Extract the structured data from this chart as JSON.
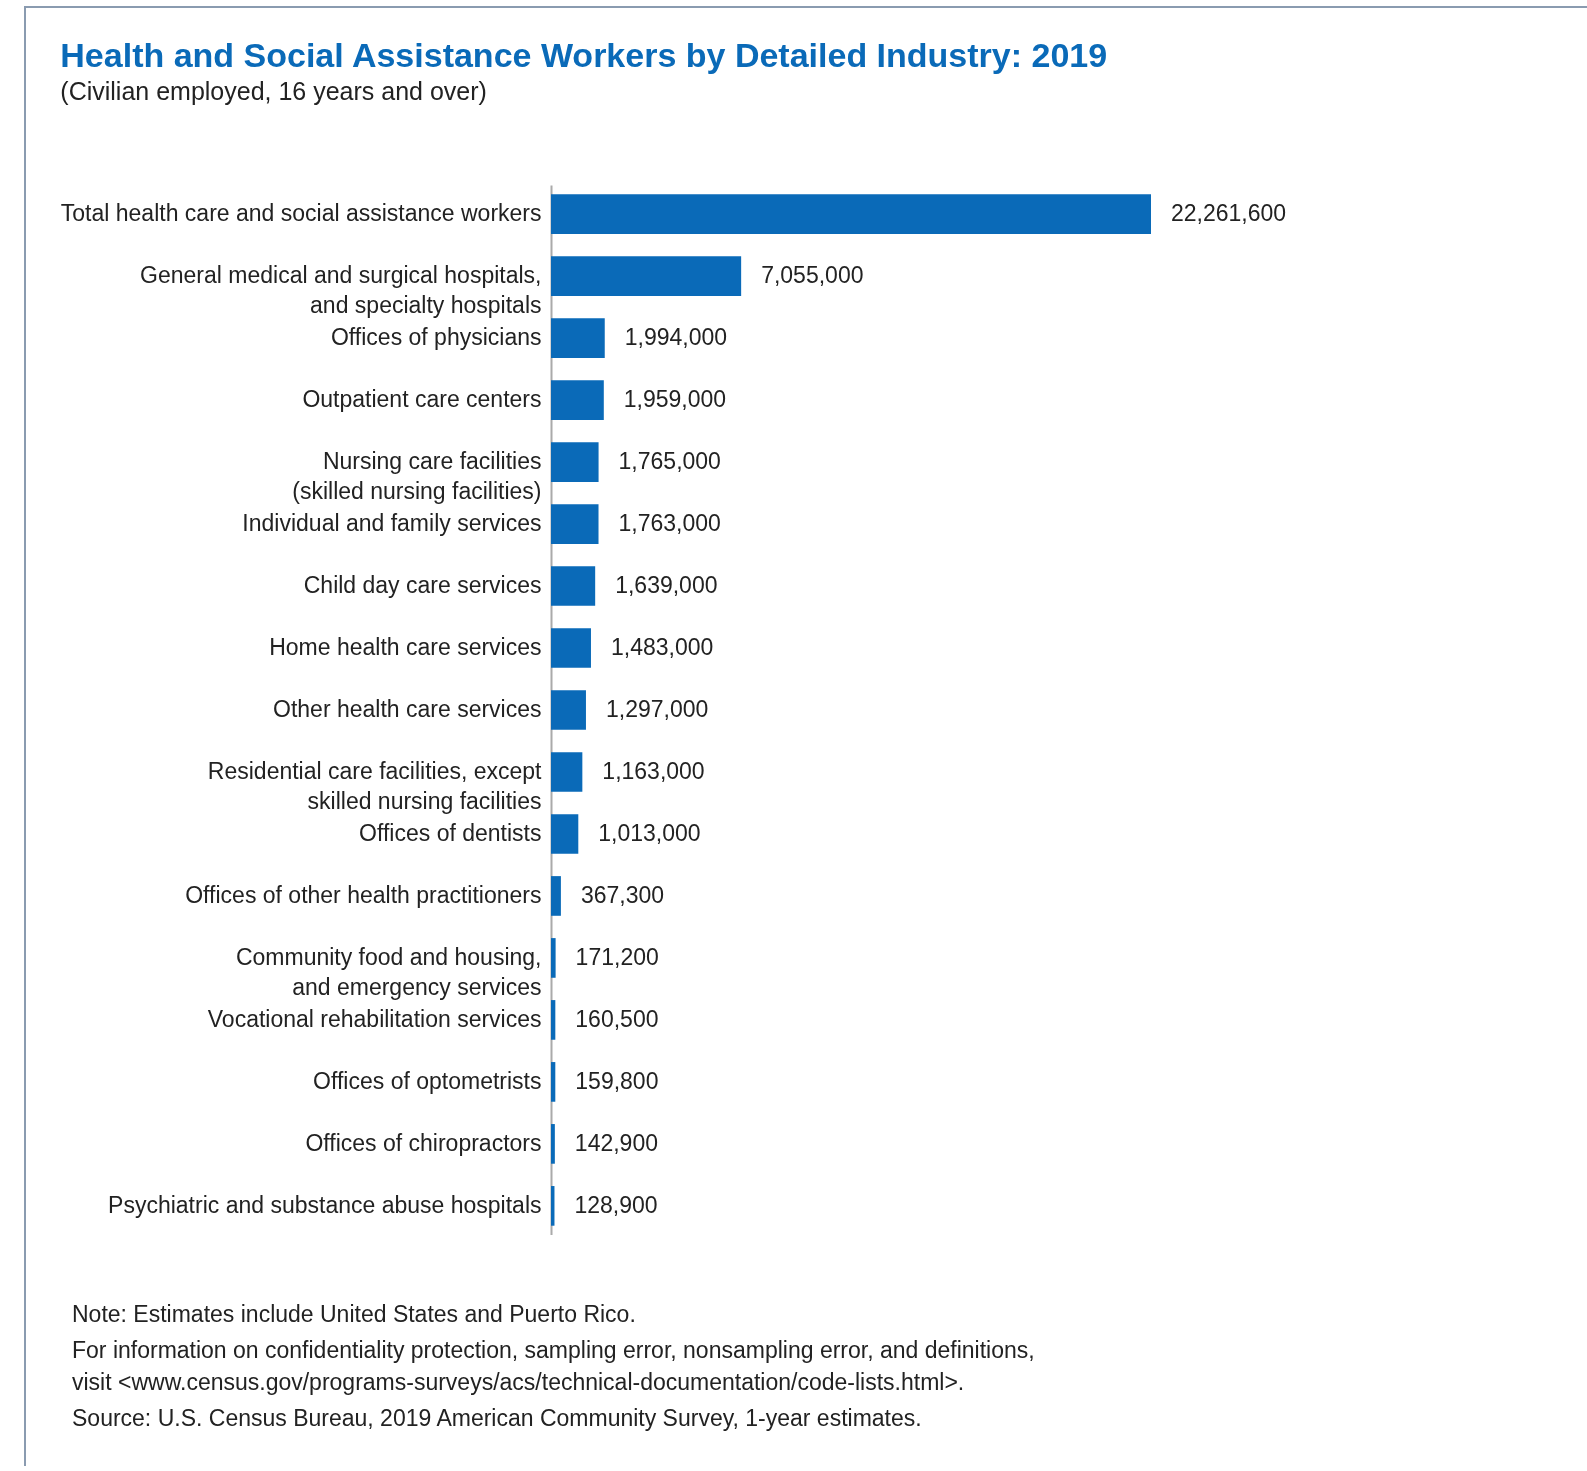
{
  "chart_data": {
    "type": "bar",
    "orientation": "horizontal",
    "title": "Health and Social Assistance Workers by Detailed Industry: 2019",
    "subtitle": "(Civilian employed, 16 years and over)",
    "categories": [
      "Total health care and social assistance workers",
      "General medical and surgical hospitals,\nand specialty hospitals",
      "Offices of physicians",
      "Outpatient care centers",
      "Nursing care facilities\n(skilled nursing facilities)",
      "Individual and family services",
      "Child day care services",
      "Home health care services",
      "Other health care services",
      "Residential care facilities, except\nskilled nursing facilities",
      "Offices of dentists",
      "Offices of other health practitioners",
      "Community food and housing,\nand emergency services",
      "Vocational rehabilitation services",
      "Offices of optometrists",
      "Offices of chiropractors",
      "Psychiatric and substance abuse hospitals"
    ],
    "values": [
      22261600,
      7055000,
      1994000,
      1959000,
      1765000,
      1763000,
      1639000,
      1483000,
      1297000,
      1163000,
      1013000,
      367300,
      171200,
      160500,
      159800,
      142900,
      128900
    ],
    "value_labels": [
      "22,261,600",
      "7,055,000",
      "1,994,000",
      "1,959,000",
      "1,765,000",
      "1,763,000",
      "1,639,000",
      "1,483,000",
      "1,297,000",
      "1,163,000",
      "1,013,000",
      "367,300",
      "171,200",
      "160,500",
      "159,800",
      "142,900",
      "128,900"
    ],
    "color": "#0a6ab8",
    "tick_labels": "y",
    "annotations": [
      "Note: Estimates include United States and Puerto Rico.",
      "For information on confidentiality protection, sampling error, nonsampling error, and definitions,\nvisit <www.census.gov/programs-surveys/acs/technical-documentation/code-lists.html>.",
      "Source: U.S. Census Bureau, 2019 American Community Survey, 1-year estimates."
    ]
  }
}
